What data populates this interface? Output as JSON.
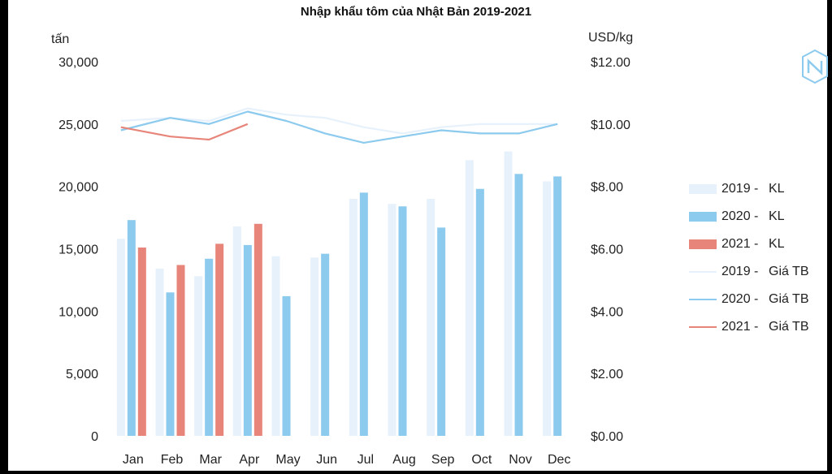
{
  "chart_data": {
    "type": "bar+line",
    "title": "Nhập khẩu tôm của Nhật Bản 2019-2021",
    "ylabel_left": "tấn",
    "ylabel_right": "USD/kg",
    "categories": [
      "Jan",
      "Feb",
      "Mar",
      "Apr",
      "May",
      "Jun",
      "Jul",
      "Aug",
      "Sep",
      "Oct",
      "Nov",
      "Dec"
    ],
    "y_left_lim": [
      0,
      30000
    ],
    "y_left_ticks": [
      "0",
      "5,000",
      "10,000",
      "15,000",
      "20,000",
      "25,000",
      "30,000"
    ],
    "y_right_lim": [
      0,
      12
    ],
    "y_right_ticks": [
      "$0.00",
      "$2.00",
      "$4.00",
      "$6.00",
      "$8.00",
      "$10.00",
      "$12.00"
    ],
    "bar_series": [
      {
        "legend_year": "2019 -",
        "legend_kind": "KL",
        "color": "#e6f1fb",
        "values": [
          15800,
          13400,
          12800,
          16800,
          14400,
          14300,
          19000,
          18600,
          19000,
          22100,
          22800,
          20400
        ]
      },
      {
        "legend_year": "2020 -",
        "legend_kind": "KL",
        "color": "#8ccaee",
        "values": [
          17300,
          11500,
          14200,
          15300,
          11200,
          14600,
          19500,
          18400,
          16700,
          19800,
          21000,
          20800
        ]
      },
      {
        "legend_year": "2021 -",
        "legend_kind": "KL",
        "color": "#e8857a",
        "values": [
          15100,
          13700,
          15400,
          17000,
          null,
          null,
          null,
          null,
          null,
          null,
          null,
          null
        ]
      }
    ],
    "line_series": [
      {
        "legend_year": "2019 -",
        "legend_kind": "Giá TB",
        "color": "#e6f1fb",
        "values": [
          10.1,
          10.2,
          10.1,
          10.5,
          10.3,
          10.2,
          9.9,
          9.7,
          9.9,
          10.0,
          10.0,
          10.0
        ]
      },
      {
        "legend_year": "2020 -",
        "legend_kind": "Giá TB",
        "color": "#8ccaee",
        "values": [
          9.8,
          10.2,
          10.0,
          10.4,
          10.1,
          9.7,
          9.4,
          9.6,
          9.8,
          9.7,
          9.7,
          10.0
        ]
      },
      {
        "legend_year": "2021 -",
        "legend_kind": "Giá TB",
        "color": "#e8857a",
        "values": [
          9.9,
          9.6,
          9.5,
          10.0,
          null,
          null,
          null,
          null,
          null,
          null,
          null,
          null
        ]
      }
    ],
    "legend_position": "right",
    "grid": false
  }
}
